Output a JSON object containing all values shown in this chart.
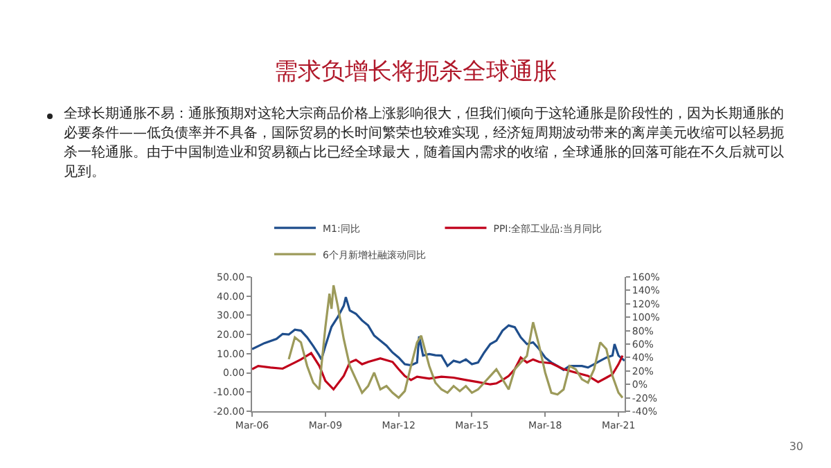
{
  "chart_data": {
    "type": "line",
    "title": "需求负增长将扼杀全球通胀",
    "subtitle": "全球长期通胀不易：通胀预期对这轮大宗商品价格上涨影响很大，但我们倾向于这轮通胀是阶段性的，因为长期通胀的必要条件——低负债率并不具备，国际贸易的长时间繁荣也较难实现，经济短周期波动带来的离岸美元收缩可以轻易扼杀一轮通胀。由于中国制造业和贸易额占比已经全球最大，随着国内需求的收缩，全球通胀的回落可能在不久后就可以见到。",
    "annotations": [
      "30"
    ],
    "legend": "top",
    "grid": false,
    "marker": "none",
    "line_style": "solid",
    "xlim": [
      "2006-03",
      "2021-06"
    ],
    "xticks": [
      {
        "value": "2006-03",
        "label": "Mar-06"
      },
      {
        "value": "2009-03",
        "label": "Mar-09"
      },
      {
        "value": "2012-03",
        "label": "Mar-12"
      },
      {
        "value": "2015-03",
        "label": "Mar-15"
      },
      {
        "value": "2018-03",
        "label": "Mar-18"
      },
      {
        "value": "2021-03",
        "label": "Mar-21"
      }
    ],
    "ylim": [
      -20,
      50
    ],
    "yticks": [
      {
        "value": -20,
        "label": "-20.00"
      },
      {
        "value": -10,
        "label": "-10.00"
      },
      {
        "value": 0,
        "label": "0.00"
      },
      {
        "value": 10,
        "label": "10.00"
      },
      {
        "value": 20,
        "label": "20.00"
      },
      {
        "value": 30,
        "label": "30.00"
      },
      {
        "value": 40,
        "label": "40.00"
      },
      {
        "value": 50,
        "label": "50.00"
      }
    ],
    "y2lim": [
      -40,
      160
    ],
    "y2ticks": [
      {
        "value": -40,
        "label": "-40%"
      },
      {
        "value": -20,
        "label": "-20%"
      },
      {
        "value": 0,
        "label": "0%"
      },
      {
        "value": 20,
        "label": "20%"
      },
      {
        "value": 40,
        "label": "40%"
      },
      {
        "value": 60,
        "label": "60%"
      },
      {
        "value": 80,
        "label": "80%"
      },
      {
        "value": 100,
        "label": "100%"
      },
      {
        "value": 120,
        "label": "120%"
      },
      {
        "value": 140,
        "label": "140%"
      },
      {
        "value": 160,
        "label": "160%"
      }
    ],
    "series": [
      {
        "name": "M1:同比",
        "color": "#1f4e8c",
        "x": [
          "2006-03",
          "2006-09",
          "2007-03",
          "2007-06",
          "2007-09",
          "2007-12",
          "2008-03",
          "2008-06",
          "2008-09",
          "2008-12",
          "2009-01",
          "2009-03",
          "2009-06",
          "2009-09",
          "2009-12",
          "2010-01",
          "2010-03",
          "2010-06",
          "2010-09",
          "2010-12",
          "2011-03",
          "2011-06",
          "2011-09",
          "2011-12",
          "2012-03",
          "2012-06",
          "2012-09",
          "2012-12",
          "2013-01",
          "2013-03",
          "2013-06",
          "2013-09",
          "2013-12",
          "2014-03",
          "2014-06",
          "2014-09",
          "2014-12",
          "2015-03",
          "2015-06",
          "2015-09",
          "2015-12",
          "2016-03",
          "2016-06",
          "2016-09",
          "2016-12",
          "2017-03",
          "2017-06",
          "2017-09",
          "2017-12",
          "2018-03",
          "2018-06",
          "2018-09",
          "2018-12",
          "2019-03",
          "2019-06",
          "2019-09",
          "2019-12",
          "2020-03",
          "2020-06",
          "2020-09",
          "2020-12",
          "2021-01",
          "2021-03",
          "2021-06"
        ],
        "values": [
          12.4,
          15.5,
          17.7,
          20.3,
          20,
          22.5,
          22,
          18.5,
          14,
          9,
          7,
          14,
          24,
          29,
          35,
          39.5,
          32.5,
          30.8,
          27.3,
          24.7,
          19.4,
          16.8,
          14.2,
          10.6,
          8,
          4.5,
          4,
          5.4,
          19,
          9,
          9.8,
          9.2,
          9,
          3.6,
          6.3,
          5.4,
          7,
          4.5,
          5.4,
          10.6,
          15,
          16.8,
          22,
          24.7,
          23.8,
          18.5,
          15,
          15.9,
          12.4,
          8,
          5.4,
          3.6,
          1.5,
          3.6,
          3.6,
          3.6,
          2.8,
          4.5,
          6.3,
          8,
          9,
          15,
          9,
          6.3
        ]
      },
      {
        "name": "PPI:全部工业品:当月同比",
        "color": "#c0001a",
        "x": [
          "2006-03",
          "2006-06",
          "2006-12",
          "2007-06",
          "2007-12",
          "2008-03",
          "2008-08",
          "2008-12",
          "2009-03",
          "2009-07",
          "2009-12",
          "2010-03",
          "2010-06",
          "2010-09",
          "2010-12",
          "2011-06",
          "2011-12",
          "2012-03",
          "2012-06",
          "2012-09",
          "2012-12",
          "2013-06",
          "2013-12",
          "2014-06",
          "2014-12",
          "2015-06",
          "2015-12",
          "2016-03",
          "2016-06",
          "2016-09",
          "2016-12",
          "2017-03",
          "2017-06",
          "2017-09",
          "2017-12",
          "2018-06",
          "2018-12",
          "2019-06",
          "2019-12",
          "2020-05",
          "2020-09",
          "2020-12",
          "2021-03",
          "2021-05"
        ],
        "values": [
          1.9,
          3.6,
          2.8,
          2.2,
          5.4,
          7,
          10.3,
          3.6,
          -4.2,
          -8.6,
          -1.6,
          5.4,
          6.8,
          4.5,
          5.7,
          7.5,
          5.7,
          1.9,
          -1.6,
          -3.7,
          -2,
          -3,
          -2,
          -2.5,
          -3.7,
          -4.8,
          -6,
          -5.5,
          -3.7,
          -1.6,
          1.9,
          8,
          5.4,
          7,
          5.7,
          5,
          1.9,
          0.1,
          -1.6,
          -4.8,
          -2.5,
          -0.7,
          4.5,
          9
        ]
      },
      {
        "name": "6个月新增社融滚动同比",
        "color": "#9c9a5a",
        "axis": "y2",
        "x": [
          "2007-09",
          "2007-12",
          "2008-03",
          "2008-06",
          "2008-09",
          "2008-12",
          "2009-01",
          "2009-03",
          "2009-05",
          "2009-06",
          "2009-07",
          "2009-09",
          "2009-12",
          "2010-03",
          "2010-06",
          "2010-09",
          "2010-12",
          "2011-03",
          "2011-06",
          "2011-09",
          "2011-12",
          "2012-03",
          "2012-06",
          "2012-09",
          "2012-12",
          "2013-02",
          "2013-06",
          "2013-09",
          "2013-12",
          "2014-03",
          "2014-06",
          "2014-09",
          "2014-12",
          "2015-03",
          "2015-06",
          "2015-09",
          "2015-12",
          "2016-03",
          "2016-06",
          "2016-09",
          "2016-12",
          "2017-03",
          "2017-06",
          "2017-09",
          "2017-12",
          "2018-03",
          "2018-06",
          "2018-09",
          "2018-12",
          "2019-03",
          "2019-06",
          "2019-09",
          "2019-12",
          "2020-03",
          "2020-06",
          "2020-09",
          "2020-12",
          "2021-03",
          "2021-05"
        ],
        "values": [
          37.5,
          70,
          62.5,
          27.5,
          2.5,
          -7.5,
          27.5,
          85,
          135,
          112.5,
          147.5,
          117.5,
          67.5,
          27.5,
          7.5,
          -12.5,
          -2.5,
          17.5,
          -7.5,
          -2.5,
          -12.5,
          -20,
          -10,
          27.5,
          62.5,
          72.5,
          27.5,
          2.5,
          -7.5,
          -12.5,
          -2.5,
          -10,
          -2.5,
          -12.5,
          -7.5,
          2.5,
          12.5,
          22.5,
          7.5,
          -7.5,
          22.5,
          32.5,
          42.5,
          92.5,
          57.5,
          17.5,
          -12.5,
          -15,
          -7.5,
          27.5,
          22.5,
          7.5,
          2.5,
          22.5,
          62.5,
          52.5,
          12.5,
          -12.5,
          -20
        ]
      }
    ]
  }
}
